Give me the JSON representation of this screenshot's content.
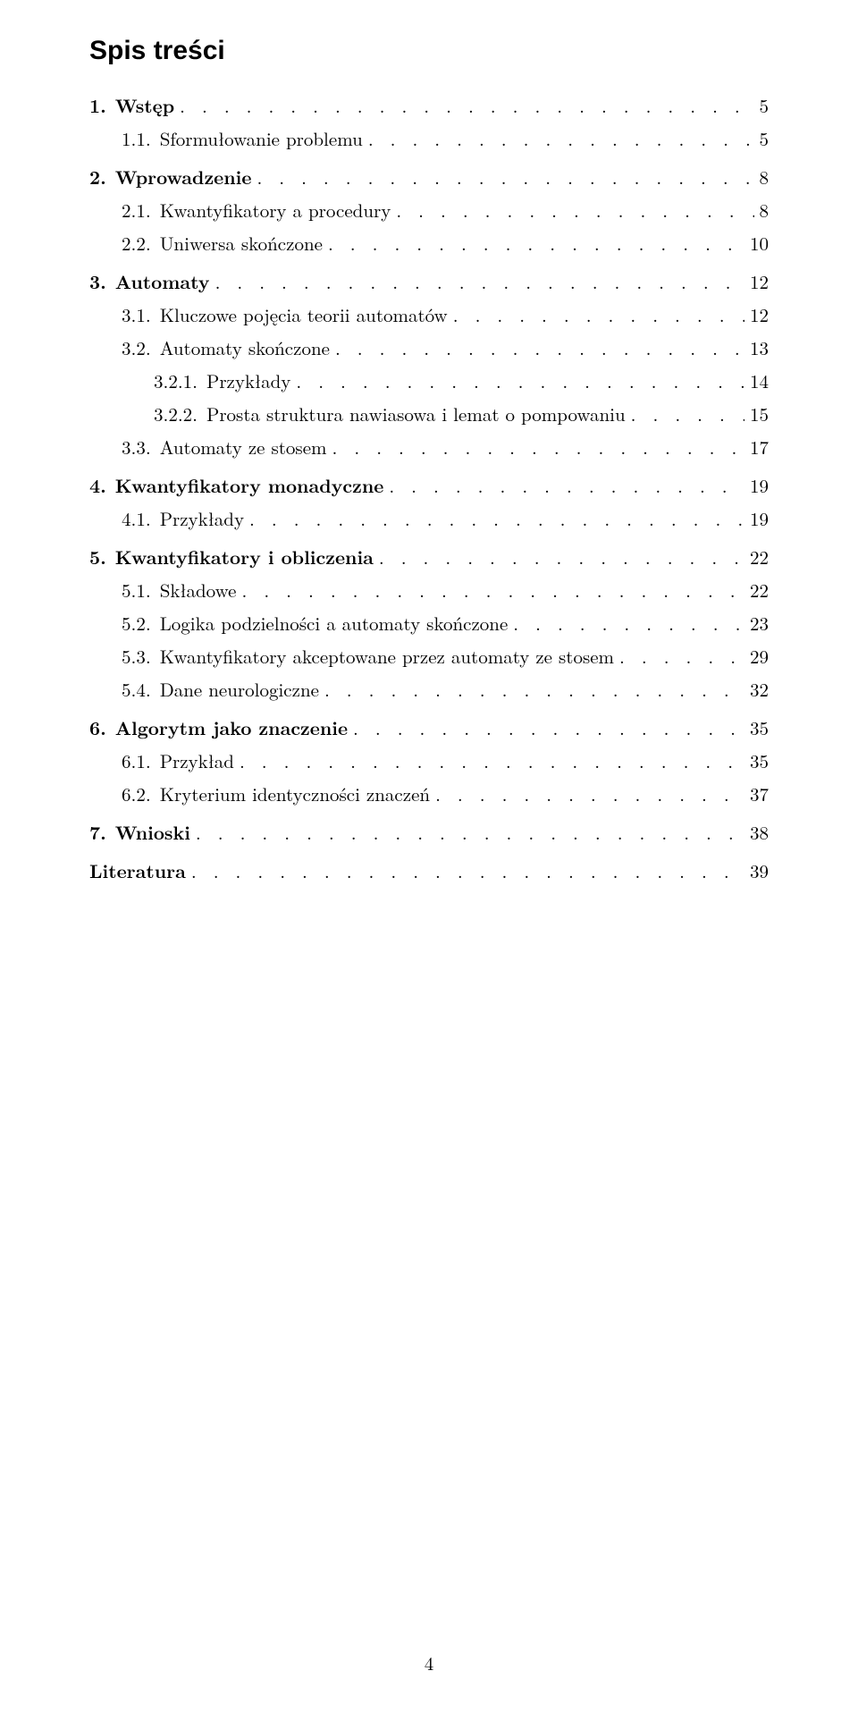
{
  "heading": "Spis treści",
  "footer_page": "4",
  "entries": [
    {
      "num": "1.",
      "title": "Wstęp",
      "page": "5",
      "level": 0,
      "bold": true,
      "topgap": false
    },
    {
      "num": "1.1.",
      "title": "Sformułowanie problemu",
      "page": "5",
      "level": 1,
      "bold": false,
      "topgap": false
    },
    {
      "num": "2.",
      "title": "Wprowadzenie",
      "page": "8",
      "level": 0,
      "bold": true,
      "topgap": true
    },
    {
      "num": "2.1.",
      "title": "Kwantyfikatory a procedury",
      "page": "8",
      "level": 1,
      "bold": false,
      "topgap": false
    },
    {
      "num": "2.2.",
      "title": "Uniwersa skończone",
      "page": "10",
      "level": 1,
      "bold": false,
      "topgap": false
    },
    {
      "num": "3.",
      "title": "Automaty",
      "page": "12",
      "level": 0,
      "bold": true,
      "topgap": true
    },
    {
      "num": "3.1.",
      "title": "Kluczowe pojęcia teorii automatów",
      "page": "12",
      "level": 1,
      "bold": false,
      "topgap": false
    },
    {
      "num": "3.2.",
      "title": "Automaty skończone",
      "page": "13",
      "level": 1,
      "bold": false,
      "topgap": false
    },
    {
      "num": "3.2.1.",
      "title": "Przykłady",
      "page": "14",
      "level": 2,
      "bold": false,
      "topgap": false
    },
    {
      "num": "3.2.2.",
      "title": "Prosta struktura nawiasowa i lemat o pompowaniu",
      "page": "15",
      "level": 2,
      "bold": false,
      "topgap": false
    },
    {
      "num": "3.3.",
      "title": "Automaty ze stosem",
      "page": "17",
      "level": 1,
      "bold": false,
      "topgap": false
    },
    {
      "num": "4.",
      "title": "Kwantyfikatory monadyczne",
      "page": "19",
      "level": 0,
      "bold": true,
      "topgap": true
    },
    {
      "num": "4.1.",
      "title": "Przykłady",
      "page": "19",
      "level": 1,
      "bold": false,
      "topgap": false
    },
    {
      "num": "5.",
      "title": "Kwantyfikatory i obliczenia",
      "page": "22",
      "level": 0,
      "bold": true,
      "topgap": true
    },
    {
      "num": "5.1.",
      "title": "Składowe",
      "page": "22",
      "level": 1,
      "bold": false,
      "topgap": false
    },
    {
      "num": "5.2.",
      "title": "Logika podzielności a automaty skończone",
      "page": "23",
      "level": 1,
      "bold": false,
      "topgap": false
    },
    {
      "num": "5.3.",
      "title": "Kwantyfikatory akceptowane przez automaty ze stosem",
      "page": "29",
      "level": 1,
      "bold": false,
      "topgap": false
    },
    {
      "num": "5.4.",
      "title": "Dane neurologiczne",
      "page": "32",
      "level": 1,
      "bold": false,
      "topgap": false
    },
    {
      "num": "6.",
      "title": "Algorytm jako znaczenie",
      "page": "35",
      "level": 0,
      "bold": true,
      "topgap": true
    },
    {
      "num": "6.1.",
      "title": "Przykład",
      "page": "35",
      "level": 1,
      "bold": false,
      "topgap": false
    },
    {
      "num": "6.2.",
      "title": "Kryterium identyczności znaczeń",
      "page": "37",
      "level": 1,
      "bold": false,
      "topgap": false
    },
    {
      "num": "7.",
      "title": "Wnioski",
      "page": "38",
      "level": 0,
      "bold": true,
      "topgap": true
    },
    {
      "num": "",
      "title": "Literatura",
      "page": "39",
      "level": 0,
      "bold": true,
      "topgap": true
    }
  ]
}
